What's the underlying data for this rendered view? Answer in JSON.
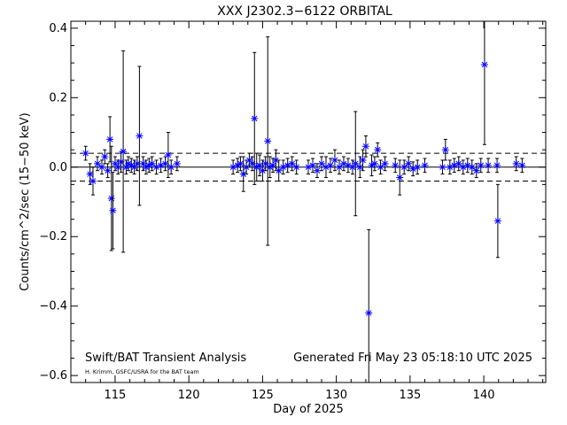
{
  "chart_data": {
    "type": "scatter",
    "title": "XXX J2302.3−6122 ORBITAL",
    "xlabel": "Day of 2025",
    "ylabel": "Counts/cm^2/sec (15−50 keV)",
    "xlim": [
      112.0,
      144.2
    ],
    "ylim": [
      -0.62,
      0.42
    ],
    "xticks": [
      115,
      120,
      125,
      130,
      135,
      140
    ],
    "yticks": [
      -0.6,
      -0.4,
      -0.2,
      0.0,
      0.2,
      0.4
    ],
    "ytick_labels": [
      "−0.6",
      "−0.4",
      "−0.2",
      "0.0",
      "0.2",
      "0.4"
    ],
    "reference_lines": [
      {
        "y": 0.0,
        "style": "solid"
      },
      {
        "y": 0.04,
        "style": "dashed"
      },
      {
        "y": -0.04,
        "style": "dashed"
      }
    ],
    "marker": "asterisk",
    "marker_color": "#0000ff",
    "errorbar_color": "#000000",
    "series": [
      {
        "points": [
          {
            "x": 113.0,
            "y": 0.04,
            "err": 0.02
          },
          {
            "x": 113.3,
            "y": -0.02,
            "err": 0.03
          },
          {
            "x": 113.5,
            "y": -0.04,
            "err": 0.04
          },
          {
            "x": 113.8,
            "y": 0.01,
            "err": 0.02
          },
          {
            "x": 114.1,
            "y": 0.0,
            "err": 0.02
          },
          {
            "x": 114.3,
            "y": 0.03,
            "err": 0.02
          },
          {
            "x": 114.5,
            "y": -0.01,
            "err": 0.02
          },
          {
            "x": 114.65,
            "y": 0.08,
            "err": 0.065
          },
          {
            "x": 114.75,
            "y": -0.09,
            "err": 0.15
          },
          {
            "x": 114.85,
            "y": -0.125,
            "err": 0.11
          },
          {
            "x": 115.0,
            "y": 0.01,
            "err": 0.02
          },
          {
            "x": 115.2,
            "y": 0.0,
            "err": 0.02
          },
          {
            "x": 115.4,
            "y": 0.015,
            "err": 0.03
          },
          {
            "x": 115.55,
            "y": 0.045,
            "err": 0.29
          },
          {
            "x": 115.75,
            "y": 0.0,
            "err": 0.02
          },
          {
            "x": 115.9,
            "y": 0.01,
            "err": 0.02
          },
          {
            "x": 116.1,
            "y": 0.005,
            "err": 0.02
          },
          {
            "x": 116.3,
            "y": 0.0,
            "err": 0.02
          },
          {
            "x": 116.5,
            "y": 0.01,
            "err": 0.02
          },
          {
            "x": 116.65,
            "y": 0.09,
            "err": 0.2
          },
          {
            "x": 116.9,
            "y": 0.01,
            "err": 0.02
          },
          {
            "x": 117.1,
            "y": 0.0,
            "err": 0.02
          },
          {
            "x": 117.3,
            "y": 0.005,
            "err": 0.02
          },
          {
            "x": 117.5,
            "y": 0.01,
            "err": 0.02
          },
          {
            "x": 117.8,
            "y": 0.0,
            "err": 0.02
          },
          {
            "x": 118.1,
            "y": 0.005,
            "err": 0.02
          },
          {
            "x": 118.4,
            "y": 0.01,
            "err": 0.02
          },
          {
            "x": 118.6,
            "y": 0.035,
            "err": 0.065
          },
          {
            "x": 118.8,
            "y": 0.0,
            "err": 0.02
          },
          {
            "x": 119.2,
            "y": 0.01,
            "err": 0.02
          },
          {
            "x": 123.0,
            "y": 0.0,
            "err": 0.02
          },
          {
            "x": 123.3,
            "y": 0.005,
            "err": 0.02
          },
          {
            "x": 123.5,
            "y": 0.01,
            "err": 0.02
          },
          {
            "x": 123.7,
            "y": -0.02,
            "err": 0.05
          },
          {
            "x": 123.9,
            "y": 0.0,
            "err": 0.02
          },
          {
            "x": 124.1,
            "y": 0.02,
            "err": 0.02
          },
          {
            "x": 124.3,
            "y": 0.01,
            "err": 0.02
          },
          {
            "x": 124.45,
            "y": 0.14,
            "err": 0.19
          },
          {
            "x": 124.6,
            "y": 0.0,
            "err": 0.04
          },
          {
            "x": 124.8,
            "y": 0.005,
            "err": 0.03
          },
          {
            "x": 125.0,
            "y": -0.01,
            "err": 0.03
          },
          {
            "x": 125.2,
            "y": 0.01,
            "err": 0.02
          },
          {
            "x": 125.35,
            "y": 0.075,
            "err": 0.3
          },
          {
            "x": 125.5,
            "y": 0.0,
            "err": 0.03
          },
          {
            "x": 125.7,
            "y": 0.005,
            "err": 0.02
          },
          {
            "x": 125.9,
            "y": 0.02,
            "err": 0.03
          },
          {
            "x": 126.1,
            "y": -0.01,
            "err": 0.03
          },
          {
            "x": 126.4,
            "y": 0.0,
            "err": 0.02
          },
          {
            "x": 126.7,
            "y": 0.005,
            "err": 0.02
          },
          {
            "x": 127.0,
            "y": 0.01,
            "err": 0.02
          },
          {
            "x": 127.3,
            "y": 0.0,
            "err": 0.02
          },
          {
            "x": 128.1,
            "y": 0.0,
            "err": 0.02
          },
          {
            "x": 128.4,
            "y": 0.005,
            "err": 0.02
          },
          {
            "x": 128.7,
            "y": -0.01,
            "err": 0.02
          },
          {
            "x": 129.0,
            "y": 0.01,
            "err": 0.02
          },
          {
            "x": 129.3,
            "y": 0.0,
            "err": 0.03
          },
          {
            "x": 129.6,
            "y": 0.005,
            "err": 0.02
          },
          {
            "x": 129.9,
            "y": 0.02,
            "err": 0.03
          },
          {
            "x": 130.2,
            "y": 0.0,
            "err": 0.02
          },
          {
            "x": 130.5,
            "y": 0.01,
            "err": 0.02
          },
          {
            "x": 130.8,
            "y": 0.005,
            "err": 0.02
          },
          {
            "x": 131.1,
            "y": 0.0,
            "err": 0.02
          },
          {
            "x": 131.3,
            "y": 0.01,
            "err": 0.15
          },
          {
            "x": 131.6,
            "y": 0.0,
            "err": 0.03
          },
          {
            "x": 131.8,
            "y": 0.02,
            "err": 0.03
          },
          {
            "x": 132.0,
            "y": 0.06,
            "err": 0.03
          },
          {
            "x": 132.2,
            "y": -0.42,
            "err": 0.24
          },
          {
            "x": 132.4,
            "y": 0.005,
            "err": 0.03
          },
          {
            "x": 132.6,
            "y": 0.01,
            "err": 0.02
          },
          {
            "x": 132.8,
            "y": 0.05,
            "err": 0.02
          },
          {
            "x": 133.0,
            "y": 0.0,
            "err": 0.02
          },
          {
            "x": 133.3,
            "y": 0.01,
            "err": 0.02
          },
          {
            "x": 134.0,
            "y": 0.005,
            "err": 0.02
          },
          {
            "x": 134.3,
            "y": -0.03,
            "err": 0.05
          },
          {
            "x": 134.6,
            "y": 0.0,
            "err": 0.02
          },
          {
            "x": 134.9,
            "y": 0.01,
            "err": 0.02
          },
          {
            "x": 135.2,
            "y": -0.005,
            "err": 0.02
          },
          {
            "x": 135.5,
            "y": 0.0,
            "err": 0.02
          },
          {
            "x": 136.0,
            "y": 0.005,
            "err": 0.02
          },
          {
            "x": 137.2,
            "y": 0.0,
            "err": 0.02
          },
          {
            "x": 137.4,
            "y": 0.05,
            "err": 0.03
          },
          {
            "x": 137.7,
            "y": 0.0,
            "err": 0.02
          },
          {
            "x": 138.0,
            "y": 0.005,
            "err": 0.02
          },
          {
            "x": 138.3,
            "y": 0.01,
            "err": 0.02
          },
          {
            "x": 138.6,
            "y": 0.0,
            "err": 0.02
          },
          {
            "x": 138.9,
            "y": 0.005,
            "err": 0.02
          },
          {
            "x": 139.2,
            "y": 0.0,
            "err": 0.02
          },
          {
            "x": 139.5,
            "y": -0.01,
            "err": 0.02
          },
          {
            "x": 139.8,
            "y": 0.005,
            "err": 0.02
          },
          {
            "x": 140.05,
            "y": 0.295,
            "err": 0.23
          },
          {
            "x": 140.3,
            "y": 0.005,
            "err": 0.02
          },
          {
            "x": 140.9,
            "y": 0.005,
            "err": 0.02
          },
          {
            "x": 140.95,
            "y": -0.155,
            "err": 0.105
          },
          {
            "x": 142.2,
            "y": 0.01,
            "err": 0.02
          },
          {
            "x": 142.6,
            "y": 0.005,
            "err": 0.02
          }
        ]
      }
    ],
    "annotations": [
      {
        "text": "Swift/BAT Transient Analysis"
      },
      {
        "text": "H. Krimm, GSFC/USRA for the BAT team"
      },
      {
        "text": "Generated Fri May 23 05:18:10 UTC 2025"
      }
    ]
  }
}
